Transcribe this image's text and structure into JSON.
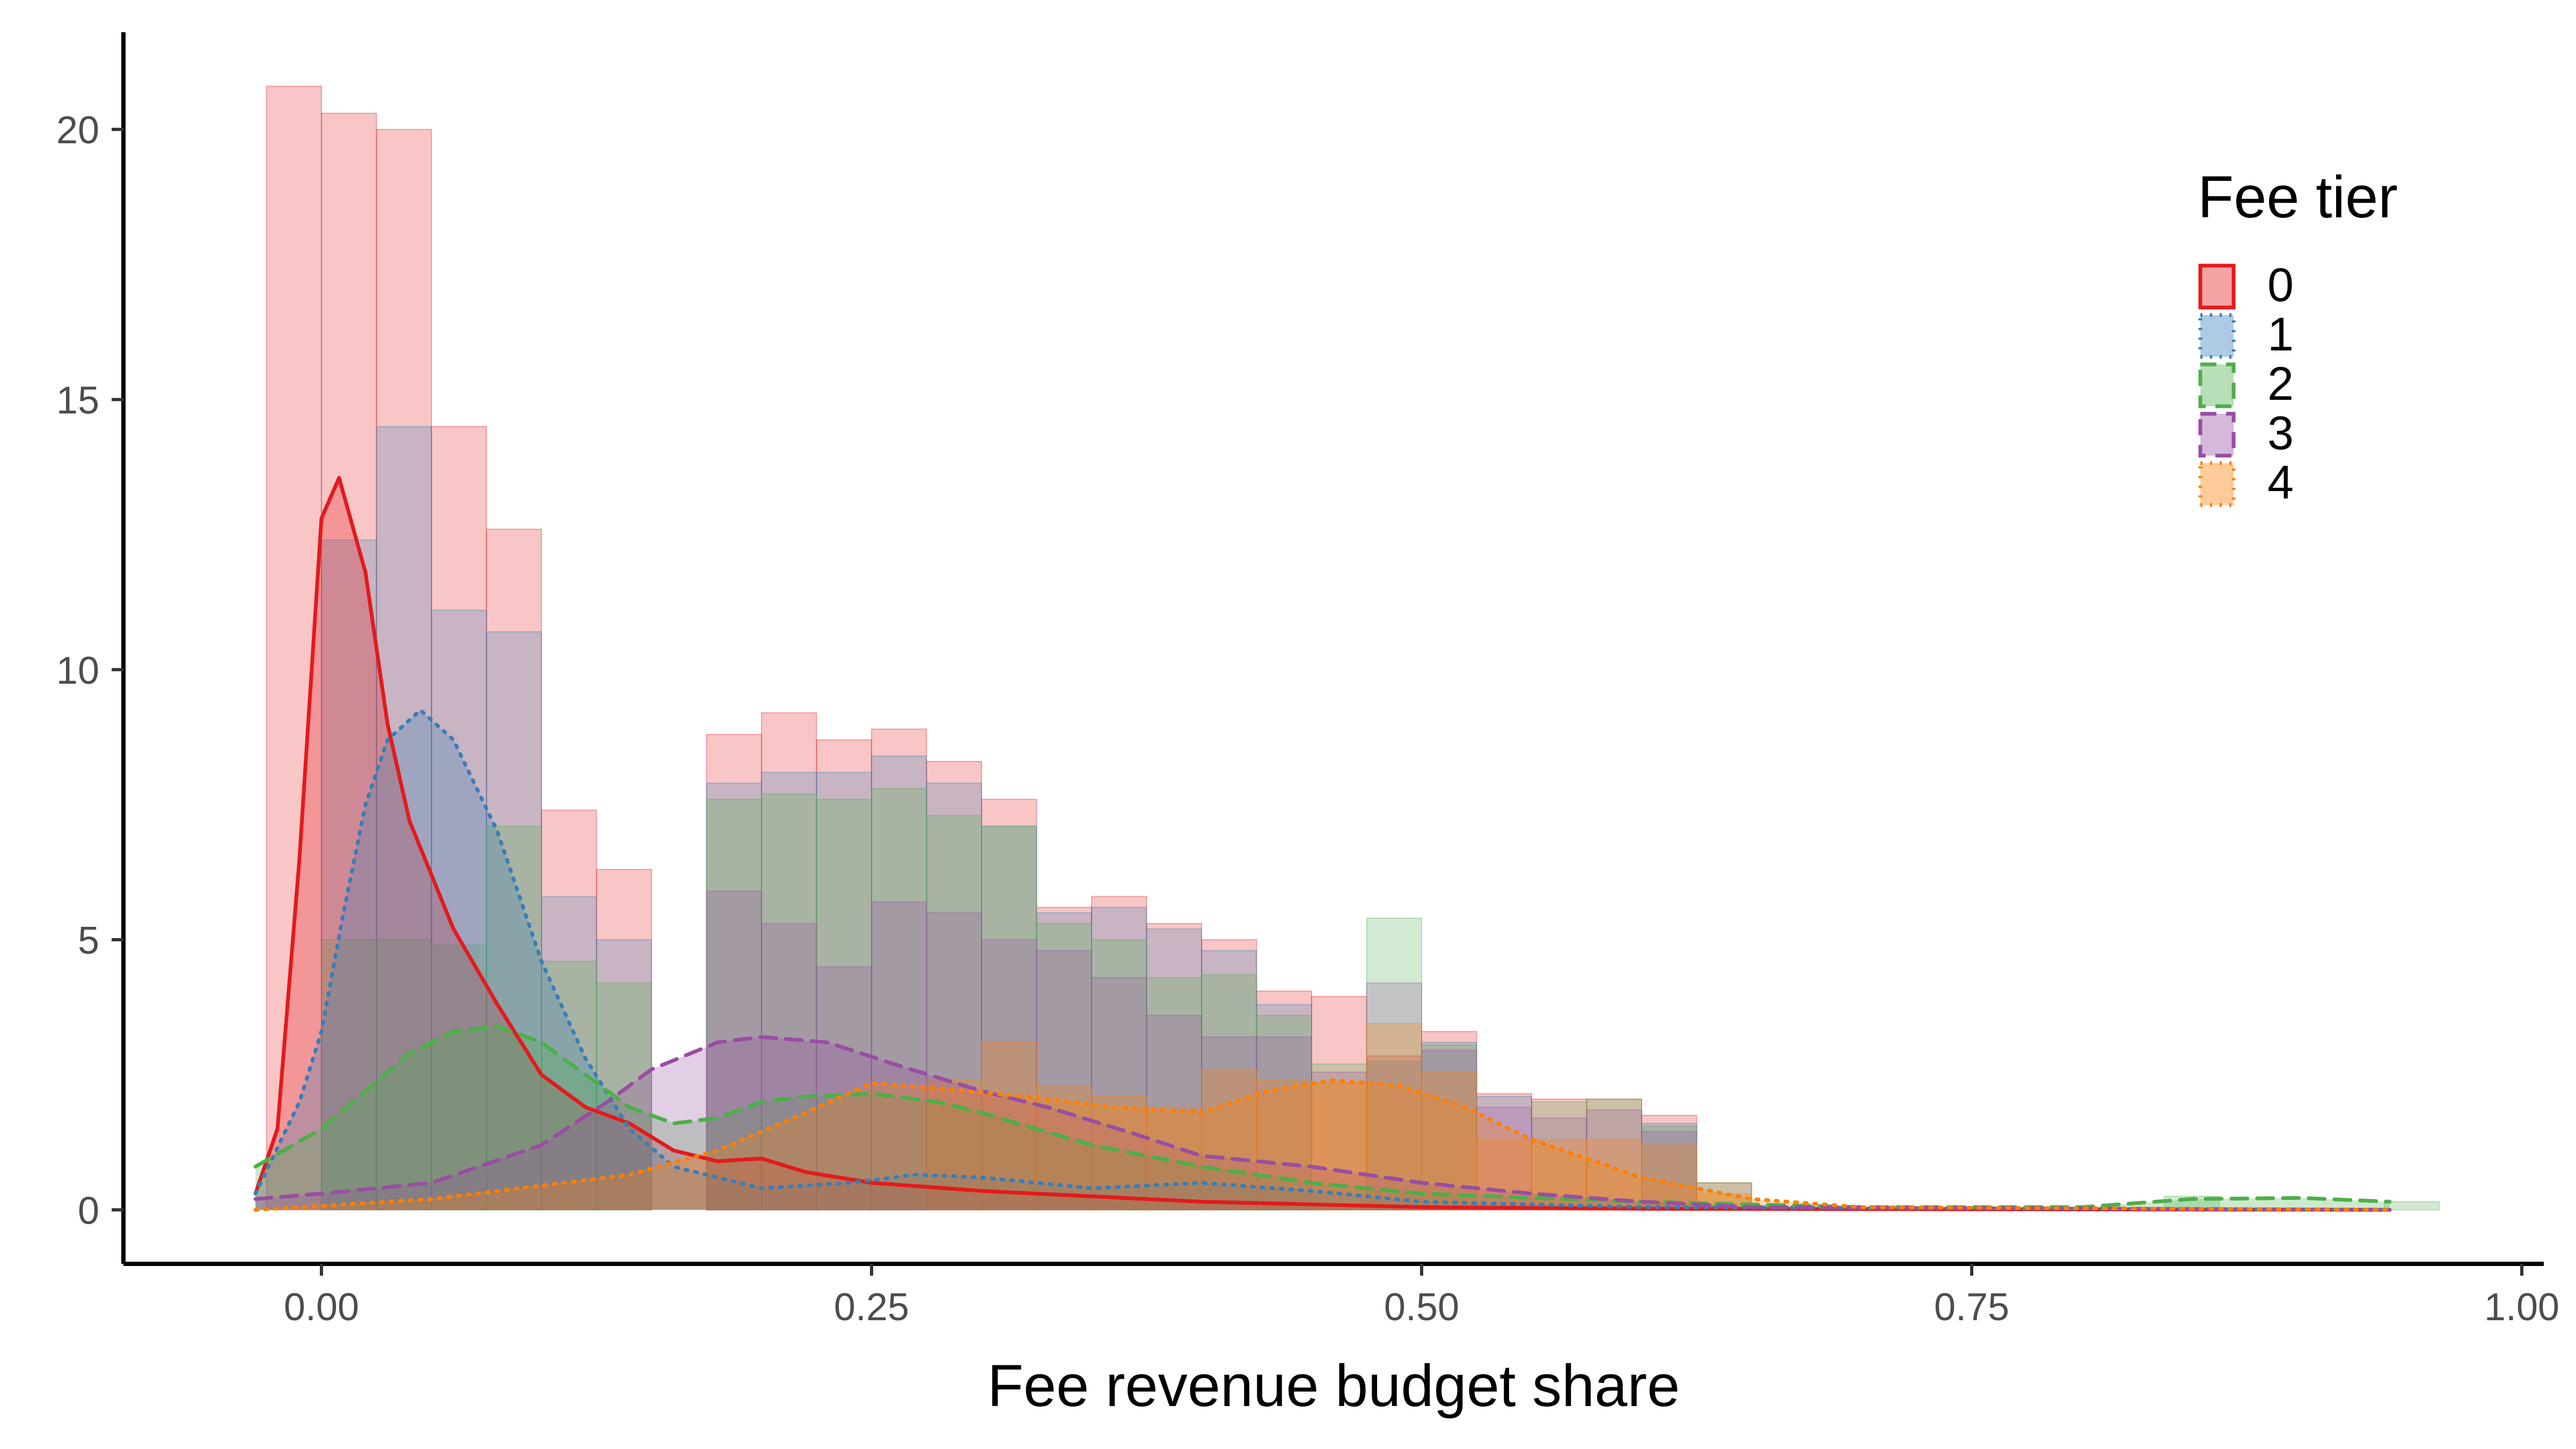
{
  "chart_data": {
    "type": "histogram",
    "xlabel": "Fee revenue budget share",
    "ylabel": "",
    "xlim": [
      -0.09,
      1.01
    ],
    "ylim": [
      -1.0,
      21.8
    ],
    "x_ticks": [
      0.0,
      0.25,
      0.5,
      0.75,
      1.0
    ],
    "x_tick_labels": [
      "0.00",
      "0.25",
      "0.50",
      "0.75",
      "1.00"
    ],
    "y_ticks": [
      0,
      5,
      10,
      15,
      20
    ],
    "y_tick_labels": [
      "0",
      "5",
      "10",
      "15",
      "20"
    ],
    "grid": false,
    "stacked_histogram": true,
    "bin_width": 0.025,
    "legend": {
      "title": "Fee tier",
      "position": "top-right",
      "labels": [
        "0",
        "1",
        "2",
        "3",
        "4"
      ]
    },
    "series": [
      {
        "name": "0",
        "color": "#E41A1C",
        "line_style": "solid",
        "stack_tops": [
          [
            -0.0125,
            20.8
          ],
          [
            0.0125,
            20.3
          ],
          [
            0.0375,
            20.0
          ],
          [
            0.0625,
            14.5
          ],
          [
            0.0875,
            12.6
          ],
          [
            0.1125,
            7.4
          ],
          [
            0.1375,
            6.3
          ],
          [
            0.1625,
            0
          ],
          [
            0.1875,
            8.8
          ],
          [
            0.2125,
            9.2
          ],
          [
            0.2375,
            8.7
          ],
          [
            0.2625,
            8.9
          ],
          [
            0.2875,
            8.3
          ],
          [
            0.3125,
            7.6
          ],
          [
            0.3375,
            5.6
          ],
          [
            0.3625,
            5.8
          ],
          [
            0.3875,
            5.3
          ],
          [
            0.4125,
            5.0
          ],
          [
            0.4375,
            4.05
          ],
          [
            0.4625,
            3.95
          ],
          [
            0.4875,
            2.85
          ],
          [
            0.5125,
            3.3
          ],
          [
            0.5375,
            2.15
          ],
          [
            0.5625,
            2.05
          ],
          [
            0.5875,
            2.05
          ],
          [
            0.6125,
            1.75
          ],
          [
            0.6375,
            0.5
          ]
        ],
        "density": [
          [
            -0.03,
            0.3
          ],
          [
            -0.02,
            1.5
          ],
          [
            -0.01,
            6.5
          ],
          [
            0.0,
            12.8
          ],
          [
            0.008,
            13.55
          ],
          [
            0.02,
            11.8
          ],
          [
            0.03,
            9.0
          ],
          [
            0.04,
            7.2
          ],
          [
            0.06,
            5.2
          ],
          [
            0.08,
            3.8
          ],
          [
            0.1,
            2.5
          ],
          [
            0.12,
            1.9
          ],
          [
            0.14,
            1.6
          ],
          [
            0.16,
            1.1
          ],
          [
            0.18,
            0.9
          ],
          [
            0.2,
            0.95
          ],
          [
            0.22,
            0.7
          ],
          [
            0.25,
            0.5
          ],
          [
            0.3,
            0.35
          ],
          [
            0.35,
            0.25
          ],
          [
            0.4,
            0.15
          ],
          [
            0.5,
            0.05
          ],
          [
            0.6,
            0.02
          ],
          [
            0.94,
            0.0
          ]
        ]
      },
      {
        "name": "1",
        "color": "#377EB8",
        "line_style": "dotted",
        "stack_tops": [
          [
            0.0125,
            12.4
          ],
          [
            0.0375,
            14.5
          ],
          [
            0.0625,
            11.1
          ],
          [
            0.0875,
            10.7
          ],
          [
            0.1125,
            5.8
          ],
          [
            0.1375,
            5.0
          ],
          [
            0.1875,
            7.9
          ],
          [
            0.2125,
            8.1
          ],
          [
            0.2375,
            8.1
          ],
          [
            0.2625,
            8.4
          ],
          [
            0.2875,
            7.9
          ],
          [
            0.3125,
            7.1
          ],
          [
            0.3375,
            5.5
          ],
          [
            0.3625,
            5.6
          ],
          [
            0.3875,
            5.2
          ],
          [
            0.4125,
            4.8
          ],
          [
            0.4375,
            3.8
          ],
          [
            0.4875,
            2.75
          ],
          [
            0.5125,
            3.1
          ],
          [
            0.5375,
            2.1
          ],
          [
            0.6125,
            1.6
          ]
        ],
        "density": [
          [
            -0.03,
            0.3
          ],
          [
            -0.01,
            2.0
          ],
          [
            0.0,
            3.3
          ],
          [
            0.01,
            5.5
          ],
          [
            0.02,
            7.5
          ],
          [
            0.03,
            8.7
          ],
          [
            0.045,
            9.25
          ],
          [
            0.06,
            8.7
          ],
          [
            0.08,
            7.0
          ],
          [
            0.1,
            4.6
          ],
          [
            0.12,
            2.8
          ],
          [
            0.14,
            1.5
          ],
          [
            0.16,
            0.8
          ],
          [
            0.19,
            0.5
          ],
          [
            0.2,
            0.4
          ],
          [
            0.24,
            0.5
          ],
          [
            0.27,
            0.65
          ],
          [
            0.3,
            0.6
          ],
          [
            0.35,
            0.4
          ],
          [
            0.4,
            0.5
          ],
          [
            0.45,
            0.35
          ],
          [
            0.5,
            0.15
          ],
          [
            0.55,
            0.1
          ],
          [
            0.6,
            0.05
          ],
          [
            0.94,
            0.0
          ]
        ]
      },
      {
        "name": "2",
        "color": "#4DAF4A",
        "line_style": "dashed",
        "stack_tops": [
          [
            0.0125,
            5.0
          ],
          [
            0.0375,
            5.0
          ],
          [
            0.0625,
            4.9
          ],
          [
            0.0875,
            7.1
          ],
          [
            0.1125,
            4.6
          ],
          [
            0.1375,
            4.2
          ],
          [
            0.1875,
            7.6
          ],
          [
            0.2125,
            7.7
          ],
          [
            0.2375,
            7.6
          ],
          [
            0.2625,
            7.8
          ],
          [
            0.2875,
            7.3
          ],
          [
            0.3125,
            7.1
          ],
          [
            0.3375,
            5.3
          ],
          [
            0.3625,
            5.0
          ],
          [
            0.3875,
            4.3
          ],
          [
            0.4125,
            4.35
          ],
          [
            0.4375,
            3.6
          ],
          [
            0.4625,
            2.7
          ],
          [
            0.4875,
            5.4
          ],
          [
            0.5125,
            3.05
          ],
          [
            0.5625,
            2.0
          ],
          [
            0.5875,
            2.05
          ],
          [
            0.6125,
            1.55
          ],
          [
            0.6375,
            0.5
          ],
          [
            0.85,
            0.25
          ],
          [
            0.95,
            0.15
          ]
        ],
        "density": [
          [
            -0.03,
            0.8
          ],
          [
            0.0,
            1.5
          ],
          [
            0.02,
            2.2
          ],
          [
            0.04,
            2.9
          ],
          [
            0.06,
            3.3
          ],
          [
            0.08,
            3.4
          ],
          [
            0.1,
            3.1
          ],
          [
            0.12,
            2.5
          ],
          [
            0.14,
            1.9
          ],
          [
            0.16,
            1.6
          ],
          [
            0.18,
            1.7
          ],
          [
            0.2,
            2.0
          ],
          [
            0.22,
            2.1
          ],
          [
            0.25,
            2.15
          ],
          [
            0.28,
            2.0
          ],
          [
            0.3,
            1.8
          ],
          [
            0.35,
            1.2
          ],
          [
            0.4,
            0.8
          ],
          [
            0.45,
            0.5
          ],
          [
            0.5,
            0.3
          ],
          [
            0.6,
            0.15
          ],
          [
            0.7,
            0.05
          ],
          [
            0.8,
            0.05
          ],
          [
            0.85,
            0.2
          ],
          [
            0.9,
            0.22
          ],
          [
            0.94,
            0.15
          ]
        ]
      },
      {
        "name": "3",
        "color": "#984EA3",
        "line_style": "dashed",
        "stack_tops": [
          [
            0.0125,
            0.0
          ],
          [
            0.1875,
            5.9
          ],
          [
            0.2125,
            5.3
          ],
          [
            0.2375,
            4.5
          ],
          [
            0.2625,
            5.7
          ],
          [
            0.2875,
            5.5
          ],
          [
            0.3125,
            5.0
          ],
          [
            0.3375,
            4.8
          ],
          [
            0.3625,
            4.3
          ],
          [
            0.3875,
            3.6
          ],
          [
            0.4125,
            3.2
          ],
          [
            0.4375,
            3.2
          ],
          [
            0.4625,
            2.55
          ],
          [
            0.4875,
            4.2
          ],
          [
            0.5125,
            2.95
          ],
          [
            0.5375,
            1.9
          ],
          [
            0.5625,
            1.7
          ],
          [
            0.5875,
            1.85
          ],
          [
            0.6125,
            1.45
          ]
        ],
        "density": [
          [
            -0.03,
            0.2
          ],
          [
            0.0,
            0.3
          ],
          [
            0.05,
            0.5
          ],
          [
            0.1,
            1.2
          ],
          [
            0.13,
            2.0
          ],
          [
            0.15,
            2.6
          ],
          [
            0.18,
            3.1
          ],
          [
            0.2,
            3.2
          ],
          [
            0.23,
            3.1
          ],
          [
            0.26,
            2.7
          ],
          [
            0.3,
            2.2
          ],
          [
            0.33,
            1.9
          ],
          [
            0.37,
            1.4
          ],
          [
            0.4,
            1.0
          ],
          [
            0.45,
            0.8
          ],
          [
            0.5,
            0.5
          ],
          [
            0.55,
            0.3
          ],
          [
            0.6,
            0.15
          ],
          [
            0.65,
            0.05
          ],
          [
            0.94,
            0.0
          ]
        ]
      },
      {
        "name": "4",
        "color": "#FF7F00",
        "line_style": "dotted",
        "stack_tops": [
          [
            0.2875,
            2.4
          ],
          [
            0.3125,
            3.1
          ],
          [
            0.3375,
            2.3
          ],
          [
            0.3625,
            2.1
          ],
          [
            0.3875,
            1.9
          ],
          [
            0.4125,
            2.6
          ],
          [
            0.4375,
            2.4
          ],
          [
            0.4625,
            2.35
          ],
          [
            0.4875,
            3.45
          ],
          [
            0.5125,
            2.55
          ],
          [
            0.5375,
            1.3
          ],
          [
            0.5625,
            1.3
          ],
          [
            0.5875,
            1.3
          ],
          [
            0.6125,
            1.2
          ],
          [
            0.6375,
            0.3
          ]
        ],
        "density": [
          [
            -0.03,
            0.0
          ],
          [
            0.05,
            0.2
          ],
          [
            0.1,
            0.45
          ],
          [
            0.14,
            0.65
          ],
          [
            0.18,
            1.1
          ],
          [
            0.22,
            1.8
          ],
          [
            0.25,
            2.35
          ],
          [
            0.28,
            2.25
          ],
          [
            0.32,
            2.1
          ],
          [
            0.36,
            1.9
          ],
          [
            0.4,
            1.8
          ],
          [
            0.43,
            2.2
          ],
          [
            0.46,
            2.4
          ],
          [
            0.49,
            2.3
          ],
          [
            0.52,
            1.9
          ],
          [
            0.55,
            1.3
          ],
          [
            0.6,
            0.6
          ],
          [
            0.65,
            0.2
          ],
          [
            0.7,
            0.05
          ],
          [
            0.94,
            0.0
          ]
        ]
      }
    ]
  }
}
